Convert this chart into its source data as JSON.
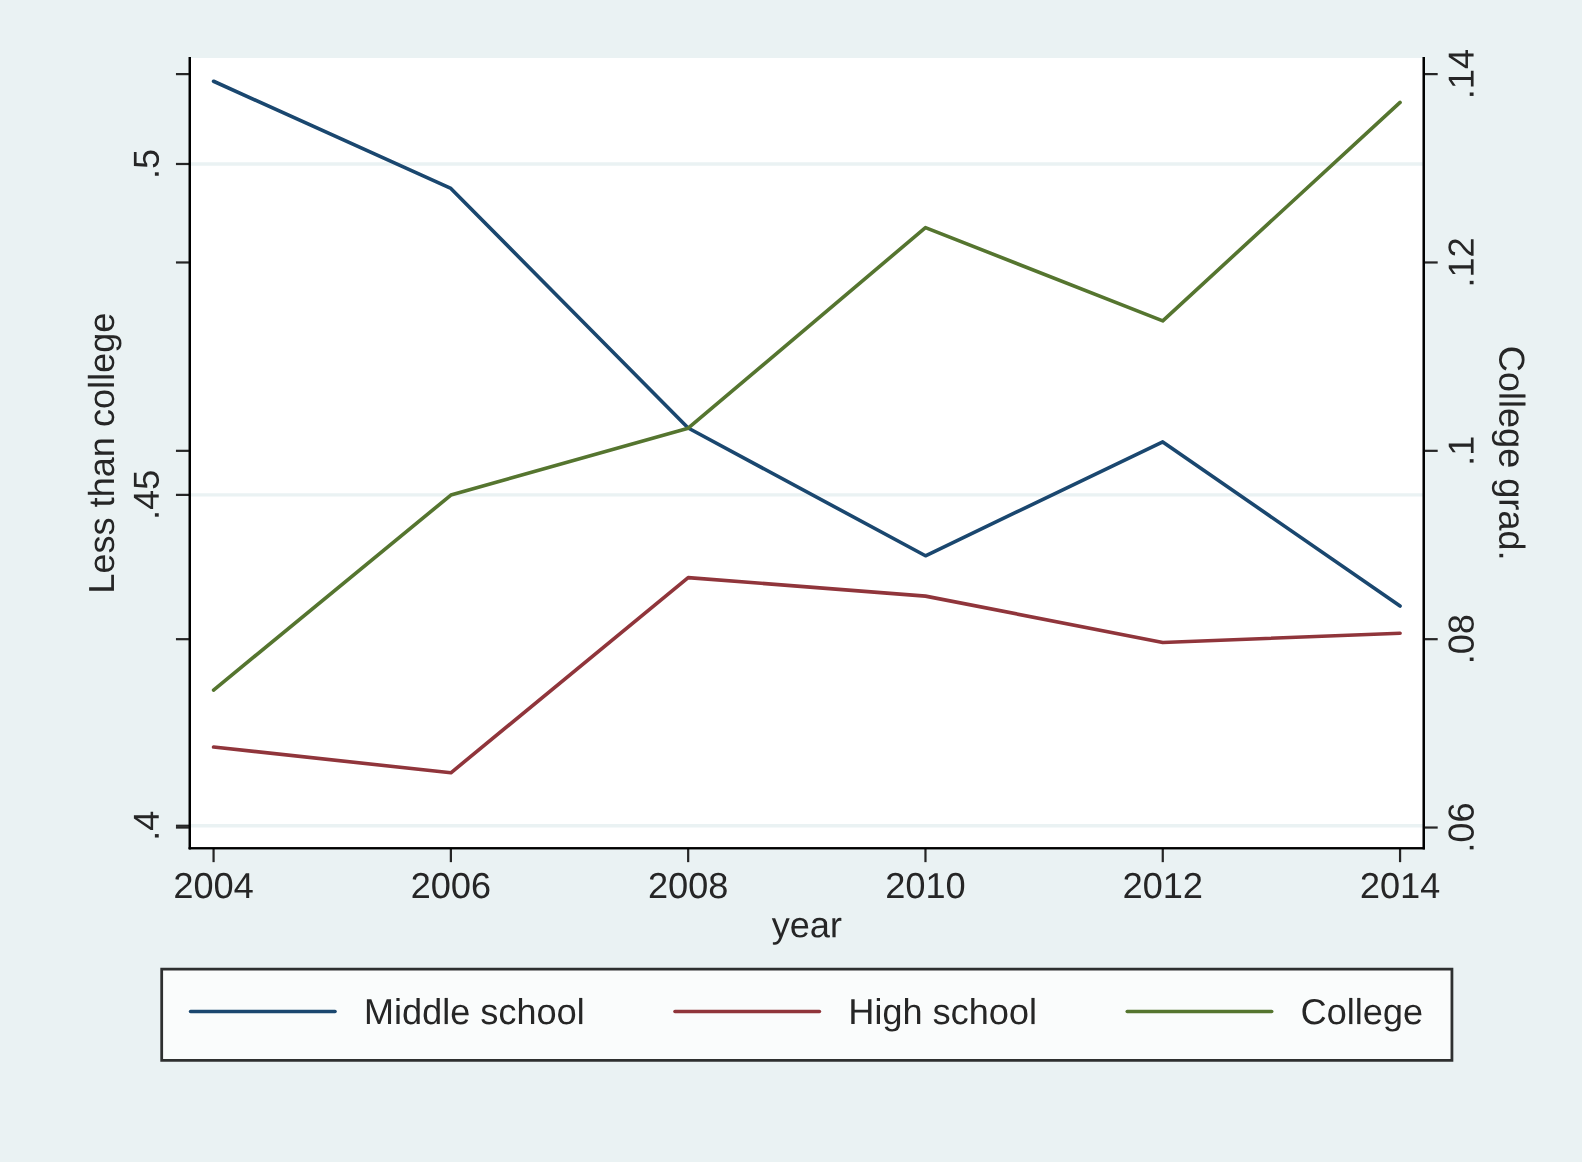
{
  "chart_data": {
    "type": "line",
    "xlabel": "year",
    "ylabel": "Less than college",
    "y2label": "College grad.",
    "x": [
      2004,
      2006,
      2008,
      2010,
      2012,
      2014
    ],
    "xlim": [
      2003.8,
      2014.2
    ],
    "xticks": [
      2004,
      2006,
      2008,
      2010,
      2012,
      2014
    ],
    "ylim": [
      0.3966,
      0.516
    ],
    "yticks": [
      {
        "value": 0.4,
        "label": ".4"
      },
      {
        "value": 0.45,
        "label": ".45"
      },
      {
        "value": 0.5,
        "label": ".5"
      }
    ],
    "y2lim": [
      0.0578,
      0.1417
    ],
    "y2ticks": [
      {
        "value": 0.06,
        "label": ".06"
      },
      {
        "value": 0.08,
        "label": ".08"
      },
      {
        "value": 0.1,
        "label": ".1"
      },
      {
        "value": 0.12,
        "label": ".12"
      },
      {
        "value": 0.14,
        "label": ".14"
      }
    ],
    "grid": "y",
    "legend": "bottom",
    "series": [
      {
        "name": "Middle school",
        "color": "#1a476f",
        "values": [
          0.5125,
          0.4963,
          0.4601,
          0.4408,
          0.458,
          0.4332
        ]
      },
      {
        "name": "High school",
        "color": "#90353b",
        "values": [
          0.4119,
          0.408,
          0.4375,
          0.4347,
          0.4277,
          0.4291
        ]
      },
      {
        "name": "College",
        "color": "#55752f",
        "axis": "y2",
        "values": [
          0.0746,
          0.0953,
          0.1024,
          0.1237,
          0.1138,
          0.137
        ]
      }
    ]
  }
}
